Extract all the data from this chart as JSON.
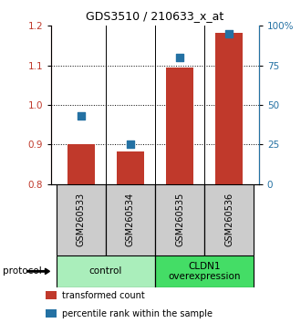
{
  "title": "GDS3510 / 210633_x_at",
  "samples": [
    "GSM260533",
    "GSM260534",
    "GSM260535",
    "GSM260536"
  ],
  "transformed_counts": [
    0.901,
    0.882,
    1.095,
    1.182
  ],
  "percentile_ranks": [
    43,
    25,
    80,
    95
  ],
  "ylim_left": [
    0.8,
    1.2
  ],
  "ylim_right": [
    0,
    100
  ],
  "yticks_left": [
    0.8,
    0.9,
    1.0,
    1.1,
    1.2
  ],
  "yticks_right": [
    0,
    25,
    50,
    75,
    100
  ],
  "ytick_labels_right": [
    "0",
    "25",
    "50",
    "75",
    "100%"
  ],
  "grid_values": [
    0.9,
    1.0,
    1.1
  ],
  "bar_color": "#c0392b",
  "dot_color": "#2471a3",
  "bar_width": 0.55,
  "groups": [
    {
      "label": "control",
      "indices": [
        0,
        1
      ],
      "color": "#aaeebb"
    },
    {
      "label": "CLDN1\noverexpression",
      "indices": [
        2,
        3
      ],
      "color": "#44dd66"
    }
  ],
  "protocol_label": "protocol",
  "legend_items": [
    {
      "color": "#c0392b",
      "label": "transformed count"
    },
    {
      "color": "#2471a3",
      "label": "percentile rank within the sample"
    }
  ],
  "sample_box_color": "#cccccc",
  "fig_width": 3.3,
  "fig_height": 3.54,
  "dpi": 100
}
